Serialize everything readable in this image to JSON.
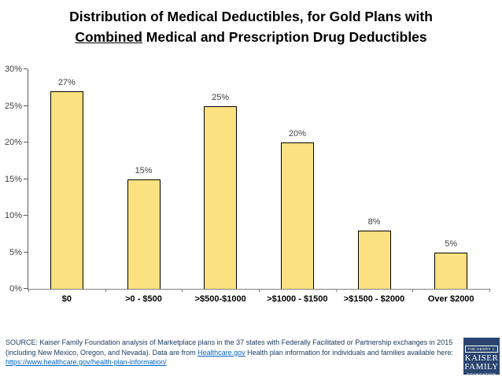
{
  "title": {
    "line1": "Distribution of Medical Deductibles, for Gold Plans with",
    "line2_underlined": "Combined",
    "line2_rest": " Medical and Prescription Drug Deductibles"
  },
  "chart_data": {
    "type": "bar",
    "title": "Distribution of Medical Deductibles, for Gold Plans with Combined Medical and Prescription Drug Deductibles",
    "categories": [
      "$0",
      ">0 - $500",
      ">$500-$1000",
      ">$1000 - $1500",
      ">$1500 - $2000",
      "Over $2000"
    ],
    "values": [
      27,
      15,
      25,
      20,
      8,
      5
    ],
    "data_labels": [
      "27%",
      "15%",
      "25%",
      "20%",
      "8%",
      "5%"
    ],
    "xlabel": "",
    "ylabel": "",
    "ylim": [
      0,
      30
    ],
    "yticks": [
      "0%",
      "5%",
      "10%",
      "15%",
      "20%",
      "25%",
      "30%"
    ],
    "grid": false,
    "legend": false,
    "bar_color": "#FCE181",
    "bar_border_color": "#000000"
  },
  "source": {
    "prefix": "SOURCE: Kaiser Family Foundation analysis of Marketplace plans in the 37 states with Federally Facilitated or Partnership exchanges in 2015 (including New Mexico, Oregon, and Nevada). Data are from ",
    "link1": "Healthcare.gov",
    "middle": " Health plan information for individuals and families available here: ",
    "link2": "https://www.healthcare.gov/health-plan-information/"
  },
  "logo": {
    "line1": "THE HENRY J.",
    "line2": "KAISER",
    "line3": "FAMILY",
    "line4": "FOUNDATION"
  },
  "colors": {
    "title_text": "#000000",
    "bar_fill": "#FCE181",
    "bar_border": "#000000",
    "axis_line": "#808080",
    "tick_text": "#404040",
    "source_text": "#17375D",
    "link": "#0563C1",
    "logo_background": "#29456F"
  }
}
